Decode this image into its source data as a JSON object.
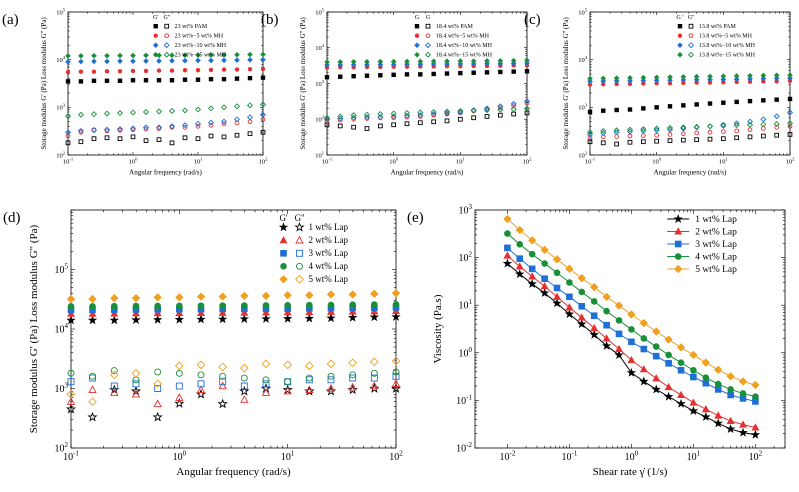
{
  "chart_data": [
    {
      "id": "a",
      "type": "scatter",
      "panel_label": "(a)",
      "xlabel": "Angular frequency (rad/s)",
      "ylabel": "Storage modulus G' (Pa) Loss modulus G'' (Pa)",
      "xlim": [
        0.1,
        100
      ],
      "ylim": [
        100,
        100000
      ],
      "xscale": "log",
      "yscale": "log",
      "x_ticks": [
        "10-1",
        "100",
        "101",
        "102"
      ],
      "y_ticks": [
        "102",
        "103",
        "104",
        "105"
      ],
      "legend_header": [
        "G'",
        "G''"
      ],
      "legend_position": "top-right",
      "x": [
        0.1,
        0.158,
        0.251,
        0.398,
        0.631,
        1,
        1.585,
        2.512,
        3.981,
        6.31,
        10,
        15.85,
        25.12,
        39.81,
        63.1,
        100
      ],
      "series": [
        {
          "name": "23 wt% PAM",
          "color": "#000000",
          "Gp": [
            3500,
            3500,
            3600,
            3600,
            3600,
            3700,
            3700,
            3700,
            3700,
            3800,
            3800,
            3900,
            3900,
            4000,
            4100,
            4200
          ],
          "Gpp": [
            180,
            190,
            220,
            230,
            220,
            240,
            200,
            210,
            180,
            230,
            220,
            250,
            240,
            260,
            280,
            300
          ]
        },
        {
          "name": "23 wt%−5 wt% MH",
          "color": "#e53030",
          "Gp": [
            5500,
            5600,
            5600,
            5700,
            5700,
            5800,
            5800,
            5900,
            5900,
            6000,
            6000,
            6100,
            6200,
            6200,
            6300,
            6400
          ],
          "Gpp": [
            250,
            300,
            340,
            320,
            330,
            340,
            350,
            360,
            380,
            380,
            400,
            420,
            450,
            470,
            500,
            560
          ]
        },
        {
          "name": "23 wt%−10 wt% MH",
          "color": "#1f6fd6",
          "Gp": [
            9000,
            9100,
            9200,
            9200,
            9300,
            9300,
            9400,
            9400,
            9500,
            9500,
            9600,
            9600,
            9700,
            9800,
            9900,
            10000
          ],
          "Gpp": [
            300,
            320,
            330,
            340,
            350,
            360,
            380,
            380,
            400,
            420,
            450,
            480,
            500,
            560,
            620,
            700
          ]
        },
        {
          "name": "23 wt%−15 wt% MH",
          "color": "#1a8f3a",
          "Gp": [
            12000,
            12000,
            12100,
            12100,
            12200,
            12200,
            12300,
            12300,
            12400,
            12400,
            12500,
            12500,
            12600,
            12700,
            12800,
            12900
          ],
          "Gpp": [
            650,
            700,
            720,
            740,
            760,
            780,
            800,
            820,
            840,
            860,
            900,
            950,
            1000,
            1050,
            1100,
            1150
          ]
        }
      ]
    },
    {
      "id": "b",
      "type": "scatter",
      "panel_label": "(b)",
      "xlabel": "Angular frequency (rad/s)",
      "ylabel": "Storage modulus G' (Pa) Loss modulus G'' (Pa)",
      "xlim": [
        0.1,
        100
      ],
      "ylim": [
        10,
        100000
      ],
      "xscale": "log",
      "yscale": "log",
      "x_ticks": [
        "10-1",
        "100",
        "101",
        "102"
      ],
      "y_ticks": [
        "101",
        "102",
        "103",
        "104",
        "105"
      ],
      "legend_header": [
        "G",
        "G"
      ],
      "legend_position": "top-right",
      "x": [
        0.1,
        0.158,
        0.251,
        0.398,
        0.631,
        1,
        1.585,
        2.512,
        3.981,
        6.31,
        10,
        15.85,
        25.12,
        39.81,
        63.1,
        100
      ],
      "series": [
        {
          "name": "18.4 wt% PAM",
          "color": "#000000",
          "Gp": [
            1500,
            1550,
            1600,
            1650,
            1700,
            1750,
            1800,
            1800,
            1850,
            1900,
            1950,
            2000,
            2050,
            2100,
            2150,
            2200
          ],
          "Gpp": [
            70,
            65,
            60,
            55,
            65,
            70,
            75,
            80,
            85,
            90,
            100,
            110,
            120,
            130,
            140,
            150
          ]
        },
        {
          "name": "18.4 wt%−5 wt% MH",
          "color": "#e53030",
          "Gp": [
            2800,
            2850,
            2850,
            2900,
            2900,
            2950,
            2950,
            3000,
            3000,
            3050,
            3050,
            3100,
            3100,
            3150,
            3200,
            3200
          ],
          "Gpp": [
            90,
            95,
            100,
            105,
            110,
            110,
            115,
            120,
            130,
            140,
            150,
            170,
            190,
            210,
            240,
            280
          ]
        },
        {
          "name": "18.4 wt%−10 wt% MH",
          "color": "#1f6fd6",
          "Gp": [
            3300,
            3300,
            3350,
            3350,
            3400,
            3400,
            3450,
            3450,
            3500,
            3500,
            3550,
            3550,
            3600,
            3600,
            3650,
            3700
          ],
          "Gpp": [
            100,
            105,
            110,
            115,
            115,
            120,
            125,
            130,
            140,
            150,
            160,
            180,
            200,
            230,
            270,
            320
          ]
        },
        {
          "name": "18.4 wt%−15 wt% MH",
          "color": "#1a8f3a",
          "Gp": [
            4000,
            4000,
            4050,
            4050,
            4100,
            4100,
            4150,
            4150,
            4200,
            4200,
            4250,
            4250,
            4300,
            4300,
            4350,
            4400
          ],
          "Gpp": [
            110,
            120,
            130,
            135,
            140,
            145,
            150,
            155,
            160,
            165,
            170,
            175,
            180,
            185,
            190,
            200
          ]
        }
      ]
    },
    {
      "id": "c",
      "type": "scatter",
      "panel_label": "(c)",
      "xlabel": "Angular frequency (rad/s)",
      "ylabel": "Storage modulus G' (Pa) Loss modulus G'' (Pa)",
      "xlim": [
        0.1,
        100
      ],
      "ylim": [
        100,
        100000
      ],
      "xscale": "log",
      "yscale": "log",
      "x_ticks": [
        "10-1",
        "100",
        "101",
        "102"
      ],
      "y_ticks": [
        "102",
        "103",
        "104",
        "105"
      ],
      "legend_header": [
        "G '",
        "G''"
      ],
      "legend_position": "top-right",
      "x": [
        0.1,
        0.158,
        0.251,
        0.398,
        0.631,
        1,
        1.585,
        2.512,
        3.981,
        6.31,
        10,
        15.85,
        25.12,
        39.81,
        63.1,
        100
      ],
      "series": [
        {
          "name": "13.8 wt% PAM",
          "color": "#000000",
          "Gp": [
            800,
            850,
            880,
            900,
            950,
            1000,
            1050,
            1100,
            1150,
            1200,
            1250,
            1300,
            1350,
            1400,
            1450,
            1500
          ],
          "Gpp": [
            190,
            180,
            170,
            185,
            190,
            195,
            200,
            205,
            210,
            215,
            220,
            230,
            240,
            250,
            260,
            270
          ]
        },
        {
          "name": "13.8 wt%−5 wt% MH",
          "color": "#e53030",
          "Gp": [
            3000,
            3050,
            3100,
            3100,
            3150,
            3200,
            3200,
            3250,
            3300,
            3300,
            3350,
            3400,
            3450,
            3500,
            3500,
            3600
          ],
          "Gpp": [
            230,
            240,
            245,
            250,
            255,
            260,
            270,
            280,
            290,
            300,
            310,
            320,
            340,
            360,
            380,
            400
          ]
        },
        {
          "name": "13.8 wt%−10 wt% MH",
          "color": "#1f6fd6",
          "Gp": [
            3500,
            3550,
            3600,
            3600,
            3650,
            3700,
            3700,
            3750,
            3800,
            3800,
            3850,
            3900,
            3950,
            4000,
            4050,
            4100
          ],
          "Gpp": [
            270,
            290,
            300,
            310,
            320,
            330,
            340,
            360,
            380,
            400,
            430,
            460,
            500,
            560,
            650,
            780
          ]
        },
        {
          "name": "13.8 wt%−15 wt% MH",
          "color": "#1a8f3a",
          "Gp": [
            4000,
            4050,
            4100,
            4150,
            4200,
            4250,
            4300,
            4350,
            4400,
            4450,
            4500,
            4550,
            4600,
            4650,
            4700,
            4750
          ],
          "Gpp": [
            300,
            320,
            330,
            340,
            350,
            360,
            370,
            380,
            390,
            400,
            410,
            420,
            430,
            440,
            450,
            460
          ]
        }
      ]
    },
    {
      "id": "d",
      "type": "scatter",
      "panel_label": "(d)",
      "xlabel": "Angular frequency (rad/s)",
      "ylabel": "Storage modulus G' (Pa) Loss modulus G\" (Pa)",
      "xlim": [
        0.1,
        100
      ],
      "ylim": [
        100,
        1000000
      ],
      "xscale": "log",
      "yscale": "log",
      "x_ticks": [
        "10-1",
        "100",
        "101",
        "102"
      ],
      "y_ticks": [
        "102",
        "103",
        "104",
        "105"
      ],
      "legend_header": [
        "G'",
        "G''"
      ],
      "legend_position": "top-right",
      "x": [
        0.1,
        0.158,
        0.251,
        0.398,
        0.631,
        1,
        1.585,
        2.512,
        3.981,
        6.31,
        10,
        15.85,
        25.12,
        39.81,
        63.1,
        100
      ],
      "series": [
        {
          "name": "1 wt% Lap",
          "color": "#000000",
          "Gp": [
            14000,
            14000,
            14000,
            14200,
            14300,
            14400,
            14500,
            14600,
            14700,
            14800,
            14900,
            15000,
            15200,
            15500,
            15800,
            16000
          ],
          "Gpp": [
            450,
            330,
            950,
            900,
            330,
            560,
            800,
            550,
            900,
            1000,
            950,
            900,
            900,
            950,
            1000,
            1000
          ]
        },
        {
          "name": "2 wt% Lap",
          "color": "#e53030",
          "Gp": [
            18000,
            18000,
            18200,
            18300,
            18400,
            18500,
            18600,
            18700,
            18800,
            18900,
            19000,
            19200,
            19400,
            19600,
            19800,
            20000
          ],
          "Gpp": [
            600,
            950,
            850,
            800,
            550,
            700,
            950,
            1100,
            650,
            850,
            900,
            950,
            1000,
            1050,
            1100,
            1200
          ]
        },
        {
          "name": "3 wt% Lap",
          "color": "#1f6fd6",
          "Gp": [
            21000,
            21000,
            21200,
            21300,
            21400,
            21500,
            21600,
            21700,
            21800,
            21900,
            22000,
            22200,
            22400,
            22600,
            22800,
            23000
          ],
          "Gpp": [
            1300,
            1500,
            1100,
            1200,
            1000,
            1100,
            1200,
            1300,
            1100,
            1200,
            1300,
            1400,
            1400,
            1500,
            1500,
            1600
          ]
        },
        {
          "name": "4 wt% Lap",
          "color": "#1a8f3a",
          "Gp": [
            24000,
            24000,
            24200,
            24300,
            24400,
            24500,
            24600,
            24700,
            24800,
            24900,
            25000,
            25200,
            25400,
            25600,
            25800,
            26000
          ],
          "Gpp": [
            1800,
            1600,
            2000,
            1400,
            1900,
            1800,
            1700,
            1600,
            1500,
            1400,
            1300,
            1500,
            1600,
            1700,
            1800,
            1900
          ]
        },
        {
          "name": "5 wt% Lap",
          "color": "#f0a020",
          "Gp": [
            32000,
            32000,
            33000,
            33000,
            34000,
            34000,
            35000,
            35000,
            36000,
            36000,
            37000,
            37000,
            38000,
            38000,
            39000,
            40000
          ],
          "Gpp": [
            800,
            600,
            1700,
            1800,
            1200,
            2400,
            2500,
            2300,
            2200,
            2600,
            2500,
            2400,
            2600,
            2700,
            2800,
            2900
          ]
        }
      ]
    },
    {
      "id": "e",
      "type": "line",
      "panel_label": "(e)",
      "xlabel": "Shear rate γ̇ (1/s)",
      "ylabel": "Viscosity (Pa.s)",
      "xlim": [
        0.003,
        300
      ],
      "ylim": [
        0.01,
        1000
      ],
      "xscale": "log",
      "yscale": "log",
      "x_ticks": [
        "10-2",
        "10-1",
        "100",
        "101",
        "102"
      ],
      "y_ticks": [
        "10-2",
        "10-1",
        "100",
        "101",
        "102",
        "103"
      ],
      "legend_position": "top-right",
      "x": [
        0.01,
        0.0158,
        0.0251,
        0.0398,
        0.0631,
        0.1,
        0.158,
        0.251,
        0.398,
        0.631,
        1,
        1.585,
        2.512,
        3.981,
        6.31,
        10,
        15.85,
        25.12,
        39.81,
        63.1,
        100
      ],
      "series": [
        {
          "name": "1 wt% Lap",
          "color": "#000000",
          "marker": "star",
          "values": [
            75,
            45,
            28,
            18,
            11,
            6.5,
            4,
            2.4,
            1.4,
            0.9,
            0.38,
            0.25,
            0.17,
            0.12,
            0.085,
            0.06,
            0.045,
            0.033,
            0.025,
            0.021,
            0.019
          ]
        },
        {
          "name": "2 wt% Lap",
          "color": "#e53030",
          "marker": "triangle",
          "values": [
            110,
            65,
            40,
            25,
            15,
            9,
            5.5,
            3.3,
            2.0,
            1.2,
            0.7,
            0.45,
            0.29,
            0.19,
            0.13,
            0.09,
            0.065,
            0.048,
            0.037,
            0.031,
            0.027
          ]
        },
        {
          "name": "3 wt% Lap",
          "color": "#1f6fd6",
          "marker": "square",
          "values": [
            160,
            95,
            58,
            36,
            23,
            15,
            9.5,
            6,
            3.8,
            2.5,
            1.7,
            1.2,
            0.85,
            0.6,
            0.43,
            0.31,
            0.23,
            0.17,
            0.13,
            0.11,
            0.095
          ]
        },
        {
          "name": "4 wt% Lap",
          "color": "#1a8f3a",
          "marker": "circle",
          "values": [
            320,
            190,
            118,
            75,
            48,
            30,
            19,
            12,
            7.5,
            4.8,
            3.1,
            2.0,
            1.35,
            0.9,
            0.62,
            0.43,
            0.3,
            0.22,
            0.17,
            0.14,
            0.12
          ]
        },
        {
          "name": "5 wt% Lap",
          "color": "#f0a020",
          "marker": "diamond",
          "values": [
            650,
            380,
            230,
            145,
            92,
            58,
            37,
            24,
            15,
            9.8,
            6.4,
            4.2,
            2.8,
            1.9,
            1.3,
            0.9,
            0.62,
            0.44,
            0.32,
            0.25,
            0.21
          ]
        }
      ]
    }
  ]
}
